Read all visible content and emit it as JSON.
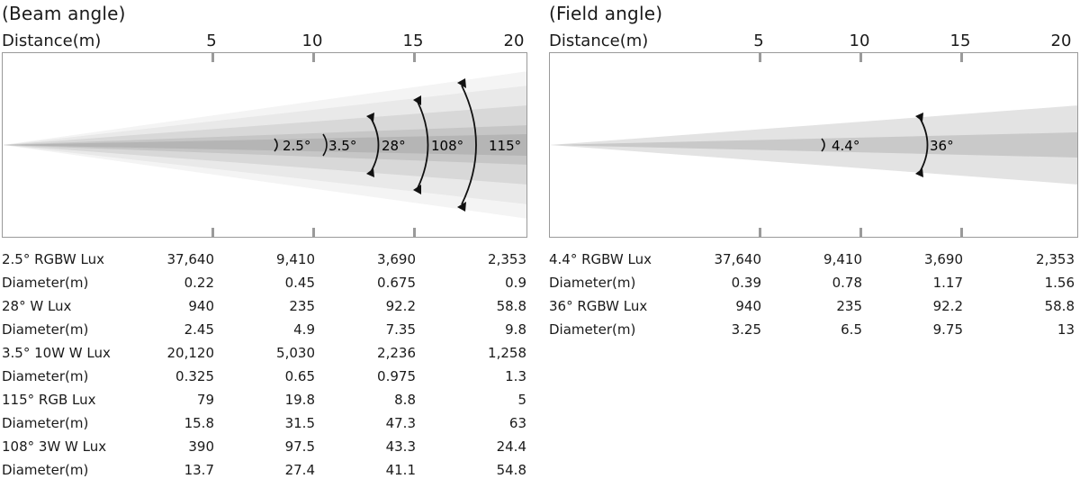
{
  "beam": {
    "title": "(Beam angle)",
    "distance_label": "Distance(m)",
    "distances": [
      "5",
      "10",
      "15",
      "20"
    ],
    "angle_labels": [
      "2.5°",
      "3.5°",
      "28°",
      "108°",
      "115°"
    ],
    "rows": [
      {
        "label": "2.5° RGBW Lux",
        "values": [
          "37,640",
          "9,410",
          "3,690",
          "2,353"
        ]
      },
      {
        "label": "Diameter(m)",
        "values": [
          "0.22",
          "0.45",
          "0.675",
          "0.9"
        ]
      },
      {
        "label": "28° W Lux",
        "values": [
          "940",
          "235",
          "92.2",
          "58.8"
        ]
      },
      {
        "label": "Diameter(m)",
        "values": [
          "2.45",
          "4.9",
          "7.35",
          "9.8"
        ]
      },
      {
        "label": "3.5° 10W W Lux",
        "values": [
          "20,120",
          "5,030",
          "2,236",
          "1,258"
        ]
      },
      {
        "label": "Diameter(m)",
        "values": [
          "0.325",
          "0.65",
          "0.975",
          "1.3"
        ]
      },
      {
        "label": "115° RGB Lux",
        "values": [
          "79",
          "19.8",
          "8.8",
          "5"
        ]
      },
      {
        "label": "Diameter(m)",
        "values": [
          "15.8",
          "31.5",
          "47.3",
          "63"
        ]
      },
      {
        "label": "108° 3W W Lux",
        "values": [
          "390",
          "97.5",
          "43.3",
          "24.4"
        ]
      },
      {
        "label": "Diameter(m)",
        "values": [
          "13.7",
          "27.4",
          "41.1",
          "54.8"
        ]
      }
    ]
  },
  "field": {
    "title": "(Field angle)",
    "distance_label": "Distance(m)",
    "distances": [
      "5",
      "10",
      "15",
      "20"
    ],
    "angle_labels": [
      "4.4°",
      "36°"
    ],
    "rows": [
      {
        "label": "4.4° RGBW Lux",
        "values": [
          "37,640",
          "9,410",
          "3,690",
          "2,353"
        ]
      },
      {
        "label": "Diameter(m)",
        "values": [
          "0.39",
          "0.78",
          "1.17",
          "1.56"
        ]
      },
      {
        "label": "36° RGBW Lux",
        "values": [
          "940",
          "235",
          "92.2",
          "58.8"
        ]
      },
      {
        "label": "Diameter(m)",
        "values": [
          "3.25",
          "6.5",
          "9.75",
          "13"
        ]
      }
    ]
  }
}
